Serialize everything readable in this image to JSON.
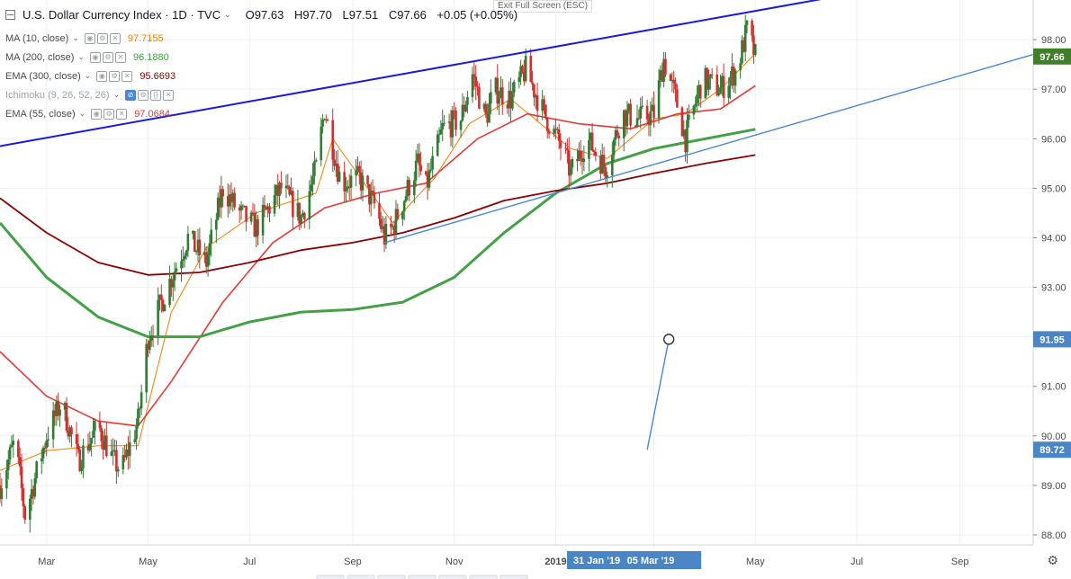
{
  "header": {
    "symbol": "U.S. Dollar Currency Index · 1D · TVC",
    "open": "O97.63",
    "high": "H97.70",
    "low": "L97.51",
    "close": "C97.66",
    "change": "+0.05 (+0.05%)",
    "exit_full_screen": "Exit Full Screen (ESC)"
  },
  "indicators": [
    {
      "label": "MA (10, close)",
      "value": "97.7155",
      "color": "#f57c00"
    },
    {
      "label": "MA (200, close)",
      "value": "96.1880",
      "color": "#4caf50"
    },
    {
      "label": "EMA (300, close)",
      "value": "95.6693",
      "color": "#8b0000"
    },
    {
      "label": "Ichimoku (9, 26, 52, 26)",
      "value": "",
      "color": "#9aa0a6"
    },
    {
      "label": "EMA (55, close)",
      "value": "97.0684",
      "color": "#e53935"
    }
  ],
  "colors": {
    "up": "#2e7d32",
    "down": "#d32f2f",
    "upper_trendline": "#1a1adb",
    "lower_trendline": "#4a86d8",
    "price_tag": "#3f7f2a",
    "marker_tag": "#4a86c5",
    "grid": "#eef0f3"
  },
  "chart_data": {
    "type": "candlestick",
    "y_ticks": [
      "98.00",
      "97.00",
      "96.00",
      "95.00",
      "94.00",
      "93.00",
      "92.00",
      "91.00",
      "90.00",
      "89.00",
      "88.00"
    ],
    "ylim": [
      87.8,
      98.8
    ],
    "x_ticks": [
      "Mar",
      "May",
      "Jul",
      "Sep",
      "Nov",
      "2019",
      "Mar",
      "May",
      "Jul",
      "Sep"
    ],
    "x_range": [
      "2018-02-01",
      "2019-10-15"
    ],
    "price_labels": {
      "last": "97.66",
      "marker_high": "91.95",
      "marker_low": "89.72"
    },
    "date_labels": [
      "31 Jan '19",
      "05 Mar '19"
    ],
    "keypoints": [
      [
        "2018-02-01",
        89.0
      ],
      [
        "2018-02-10",
        89.9
      ],
      [
        "2018-02-16",
        88.4
      ],
      [
        "2018-03-01",
        90.0
      ],
      [
        "2018-03-10",
        90.7
      ],
      [
        "2018-03-20",
        89.5
      ],
      [
        "2018-04-01",
        90.2
      ],
      [
        "2018-04-10",
        89.5
      ],
      [
        "2018-04-15",
        89.3
      ],
      [
        "2018-04-25",
        90.3
      ],
      [
        "2018-05-01",
        92.0
      ],
      [
        "2018-05-15",
        93.2
      ],
      [
        "2018-05-25",
        94.0
      ],
      [
        "2018-06-05",
        93.5
      ],
      [
        "2018-06-15",
        95.0
      ],
      [
        "2018-06-25",
        94.5
      ],
      [
        "2018-07-05",
        94.2
      ],
      [
        "2018-07-20",
        95.0
      ],
      [
        "2018-08-01",
        94.4
      ],
      [
        "2018-08-10",
        95.4
      ],
      [
        "2018-08-15",
        96.6
      ],
      [
        "2018-08-25",
        95.1
      ],
      [
        "2018-09-05",
        95.2
      ],
      [
        "2018-09-15",
        94.6
      ],
      [
        "2018-09-20",
        94.0
      ],
      [
        "2018-09-25",
        94.2
      ],
      [
        "2018-10-10",
        95.5
      ],
      [
        "2018-10-15",
        95.0
      ],
      [
        "2018-10-25",
        96.2
      ],
      [
        "2018-11-05",
        96.4
      ],
      [
        "2018-11-12",
        97.3
      ],
      [
        "2018-11-20",
        96.4
      ],
      [
        "2018-11-25",
        97.0
      ],
      [
        "2018-12-05",
        96.8
      ],
      [
        "2018-12-14",
        97.4
      ],
      [
        "2018-12-25",
        96.5
      ],
      [
        "2019-01-05",
        95.8
      ],
      [
        "2019-01-10",
        95.3
      ],
      [
        "2019-01-20",
        96.0
      ],
      [
        "2019-01-31",
        95.4
      ],
      [
        "2019-02-10",
        96.5
      ],
      [
        "2019-02-20",
        96.4
      ],
      [
        "2019-03-01",
        96.5
      ],
      [
        "2019-03-07",
        97.6
      ],
      [
        "2019-03-15",
        96.7
      ],
      [
        "2019-03-20",
        96.0
      ],
      [
        "2019-03-30",
        97.2
      ],
      [
        "2019-04-10",
        97.0
      ],
      [
        "2019-04-20",
        97.4
      ],
      [
        "2019-04-26",
        98.2
      ],
      [
        "2019-05-01",
        97.66
      ]
    ],
    "series": [
      {
        "name": "MA (10, close)",
        "points": [
          [
            "2018-02-01",
            89.3
          ],
          [
            "2018-03-01",
            89.7
          ],
          [
            "2018-04-01",
            89.8
          ],
          [
            "2018-04-25",
            89.8
          ],
          [
            "2018-05-15",
            92.5
          ],
          [
            "2018-06-05",
            93.8
          ],
          [
            "2018-07-05",
            94.5
          ],
          [
            "2018-08-10",
            94.9
          ],
          [
            "2018-08-20",
            96.0
          ],
          [
            "2018-09-10",
            95.0
          ],
          [
            "2018-09-25",
            94.3
          ],
          [
            "2018-10-20",
            95.2
          ],
          [
            "2018-11-10",
            96.3
          ],
          [
            "2018-12-05",
            96.8
          ],
          [
            "2019-01-10",
            95.8
          ],
          [
            "2019-02-01",
            95.6
          ],
          [
            "2019-03-01",
            96.4
          ],
          [
            "2019-03-20",
            96.5
          ],
          [
            "2019-04-10",
            97.0
          ],
          [
            "2019-05-01",
            97.72
          ]
        ]
      },
      {
        "name": "EMA (55, close)",
        "points": [
          [
            "2018-02-01",
            91.7
          ],
          [
            "2018-03-01",
            90.8
          ],
          [
            "2018-04-01",
            90.3
          ],
          [
            "2018-04-25",
            90.2
          ],
          [
            "2018-05-15",
            91.1
          ],
          [
            "2018-06-15",
            92.7
          ],
          [
            "2018-07-15",
            93.9
          ],
          [
            "2018-08-15",
            94.6
          ],
          [
            "2018-09-15",
            94.9
          ],
          [
            "2018-10-15",
            95.1
          ],
          [
            "2018-11-15",
            96.0
          ],
          [
            "2018-12-15",
            96.5
          ],
          [
            "2019-01-15",
            96.3
          ],
          [
            "2019-02-15",
            96.2
          ],
          [
            "2019-03-15",
            96.5
          ],
          [
            "2019-04-10",
            96.6
          ],
          [
            "2019-05-01",
            97.07
          ]
        ]
      },
      {
        "name": "MA (200, close)",
        "points": [
          [
            "2018-02-01",
            94.3
          ],
          [
            "2018-03-01",
            93.2
          ],
          [
            "2018-04-01",
            92.4
          ],
          [
            "2018-05-01",
            92.0
          ],
          [
            "2018-06-01",
            92.0
          ],
          [
            "2018-07-01",
            92.3
          ],
          [
            "2018-08-01",
            92.5
          ],
          [
            "2018-09-01",
            92.55
          ],
          [
            "2018-10-01",
            92.7
          ],
          [
            "2018-11-01",
            93.2
          ],
          [
            "2018-12-01",
            94.1
          ],
          [
            "2019-01-01",
            94.9
          ],
          [
            "2019-02-01",
            95.5
          ],
          [
            "2019-03-01",
            95.8
          ],
          [
            "2019-04-01",
            96.0
          ],
          [
            "2019-05-01",
            96.19
          ]
        ]
      },
      {
        "name": "EMA (300, close)",
        "points": [
          [
            "2018-02-01",
            94.8
          ],
          [
            "2018-03-01",
            94.1
          ],
          [
            "2018-04-01",
            93.5
          ],
          [
            "2018-05-01",
            93.25
          ],
          [
            "2018-06-01",
            93.3
          ],
          [
            "2018-07-01",
            93.5
          ],
          [
            "2018-08-01",
            93.75
          ],
          [
            "2018-09-01",
            93.9
          ],
          [
            "2018-10-01",
            94.1
          ],
          [
            "2018-11-01",
            94.4
          ],
          [
            "2018-12-01",
            94.75
          ],
          [
            "2019-01-01",
            94.95
          ],
          [
            "2019-02-01",
            95.1
          ],
          [
            "2019-03-01",
            95.3
          ],
          [
            "2019-04-01",
            95.5
          ],
          [
            "2019-05-01",
            95.67
          ]
        ]
      }
    ],
    "trendlines": [
      {
        "points": [
          [
            "2018-02-01",
            95.85
          ],
          [
            "2019-06-15",
            98.85
          ]
        ],
        "color": "upper_trendline"
      },
      {
        "points": [
          [
            "2018-09-20",
            93.9
          ],
          [
            "2019-10-15",
            97.7
          ]
        ],
        "color": "lower_trendline"
      },
      {
        "points": [
          [
            "2019-02-25",
            89.72
          ],
          [
            "2019-03-10",
            91.95
          ]
        ],
        "color": "lower_trendline"
      }
    ]
  }
}
